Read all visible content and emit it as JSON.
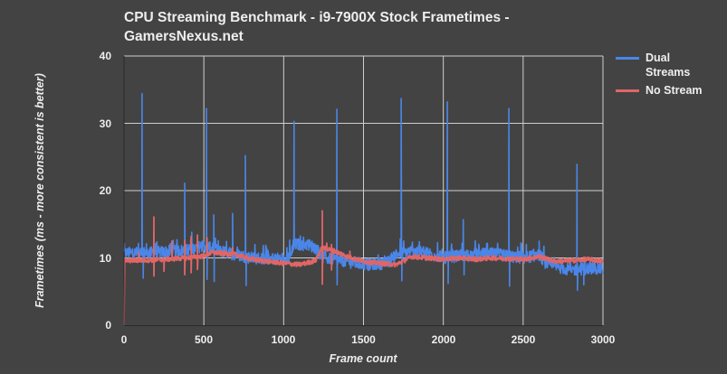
{
  "chart_data": {
    "type": "line",
    "title": "CPU Streaming Benchmark - i9-7900X Stock Frametimes - GamersNexus.net",
    "title_lines": [
      "CPU Streaming Benchmark - i9-7900X Stock Frametimes -",
      "GamersNexus.net"
    ],
    "xlabel": "Frame count",
    "ylabel": "Frametimes (ms - more consistent is better)",
    "xlim": [
      0,
      3000
    ],
    "ylim": [
      0,
      40
    ],
    "xticks": [
      0,
      500,
      1000,
      1500,
      2000,
      2500,
      3000
    ],
    "yticks": [
      0,
      10,
      20,
      30,
      40
    ],
    "grid": true,
    "legend_position": "right",
    "series": [
      {
        "name": "Dual Streams",
        "color": "#4a86e8",
        "baseline": [
          [
            0,
            10.7
          ],
          [
            200,
            10.8
          ],
          [
            400,
            11.2
          ],
          [
            500,
            11.8
          ],
          [
            600,
            11.0
          ],
          [
            700,
            10.5
          ],
          [
            800,
            10.0
          ],
          [
            900,
            9.9
          ],
          [
            1000,
            9.9
          ],
          [
            1040,
            10.2
          ],
          [
            1060,
            12.0
          ],
          [
            1150,
            12.0
          ],
          [
            1200,
            11.5
          ],
          [
            1250,
            10.0
          ],
          [
            1350,
            9.7
          ],
          [
            1450,
            9.2
          ],
          [
            1550,
            9.0
          ],
          [
            1650,
            9.3
          ],
          [
            1700,
            10.5
          ],
          [
            1800,
            11.0
          ],
          [
            1900,
            10.8
          ],
          [
            2000,
            10.0
          ],
          [
            2100,
            10.3
          ],
          [
            2200,
            10.5
          ],
          [
            2300,
            10.6
          ],
          [
            2400,
            10.3
          ],
          [
            2500,
            10.0
          ],
          [
            2600,
            10.5
          ],
          [
            2650,
            9.0
          ],
          [
            2800,
            8.2
          ],
          [
            2950,
            8.5
          ],
          [
            3000,
            8.3
          ]
        ],
        "noise": 0.9,
        "spikes": [
          [
            113,
            34.4
          ],
          [
            187,
            11.5
          ],
          [
            380,
            21.1
          ],
          [
            516,
            32.2
          ],
          [
            562,
            16.4
          ],
          [
            680,
            16.6
          ],
          [
            760,
            25.2
          ],
          [
            1065,
            30.3
          ],
          [
            1333,
            32.1
          ],
          [
            1736,
            33.7
          ],
          [
            2025,
            33.2
          ],
          [
            2125,
            15.7
          ],
          [
            2411,
            32.2
          ],
          [
            2600,
            12.5
          ],
          [
            2837,
            23.9
          ]
        ],
        "dips": [
          [
            120,
            7.0
          ],
          [
            520,
            6.8
          ],
          [
            565,
            6.5
          ],
          [
            765,
            5.9
          ],
          [
            1335,
            6.0
          ],
          [
            1740,
            6.6
          ],
          [
            2030,
            6.2
          ],
          [
            2130,
            7.5
          ],
          [
            2415,
            5.8
          ],
          [
            2840,
            5.2
          ],
          [
            2880,
            6.0
          ]
        ]
      },
      {
        "name": "No Stream",
        "color": "#e06666",
        "baseline": [
          [
            0,
            0
          ],
          [
            3,
            9.6
          ],
          [
            200,
            9.7
          ],
          [
            400,
            10.0
          ],
          [
            500,
            10.3
          ],
          [
            550,
            10.8
          ],
          [
            700,
            10.5
          ],
          [
            800,
            9.8
          ],
          [
            900,
            9.5
          ],
          [
            1000,
            9.2
          ],
          [
            1100,
            9.0
          ],
          [
            1200,
            9.6
          ],
          [
            1240,
            11.5
          ],
          [
            1300,
            11.2
          ],
          [
            1400,
            10.2
          ],
          [
            1500,
            9.5
          ],
          [
            1600,
            9.2
          ],
          [
            1700,
            9.0
          ],
          [
            1750,
            9.5
          ],
          [
            1800,
            10.2
          ],
          [
            1900,
            10.0
          ],
          [
            2000,
            9.8
          ],
          [
            2100,
            10.0
          ],
          [
            2200,
            9.8
          ],
          [
            2300,
            10.0
          ],
          [
            2400,
            9.9
          ],
          [
            2500,
            9.8
          ],
          [
            2600,
            10.2
          ],
          [
            2700,
            9.5
          ],
          [
            2800,
            9.6
          ],
          [
            2900,
            9.8
          ],
          [
            3000,
            9.5
          ]
        ],
        "noise": 0.35,
        "spikes": [
          [
            90,
            10.8
          ],
          [
            187,
            16.1
          ],
          [
            300,
            12.5
          ],
          [
            380,
            12.6
          ],
          [
            420,
            13.2
          ],
          [
            460,
            13.4
          ],
          [
            520,
            13.0
          ],
          [
            680,
            11.5
          ],
          [
            1242,
            17.0
          ],
          [
            1270,
            12.2
          ],
          [
            1300,
            12.0
          ],
          [
            1415,
            11.0
          ]
        ],
        "dips": [
          [
            187,
            7.3
          ],
          [
            250,
            8.0
          ],
          [
            380,
            7.5
          ],
          [
            420,
            7.8
          ],
          [
            460,
            8.3
          ],
          [
            1242,
            6.1
          ],
          [
            1300,
            8.2
          ]
        ]
      }
    ]
  },
  "legend": {
    "items": [
      {
        "label": "Dual Streams",
        "color": "#4a86e8"
      },
      {
        "label": "No Stream",
        "color": "#e06666"
      }
    ]
  },
  "colors": {
    "background": "#434343",
    "grid": "#cfcfcf",
    "text": "#eeeeee"
  }
}
